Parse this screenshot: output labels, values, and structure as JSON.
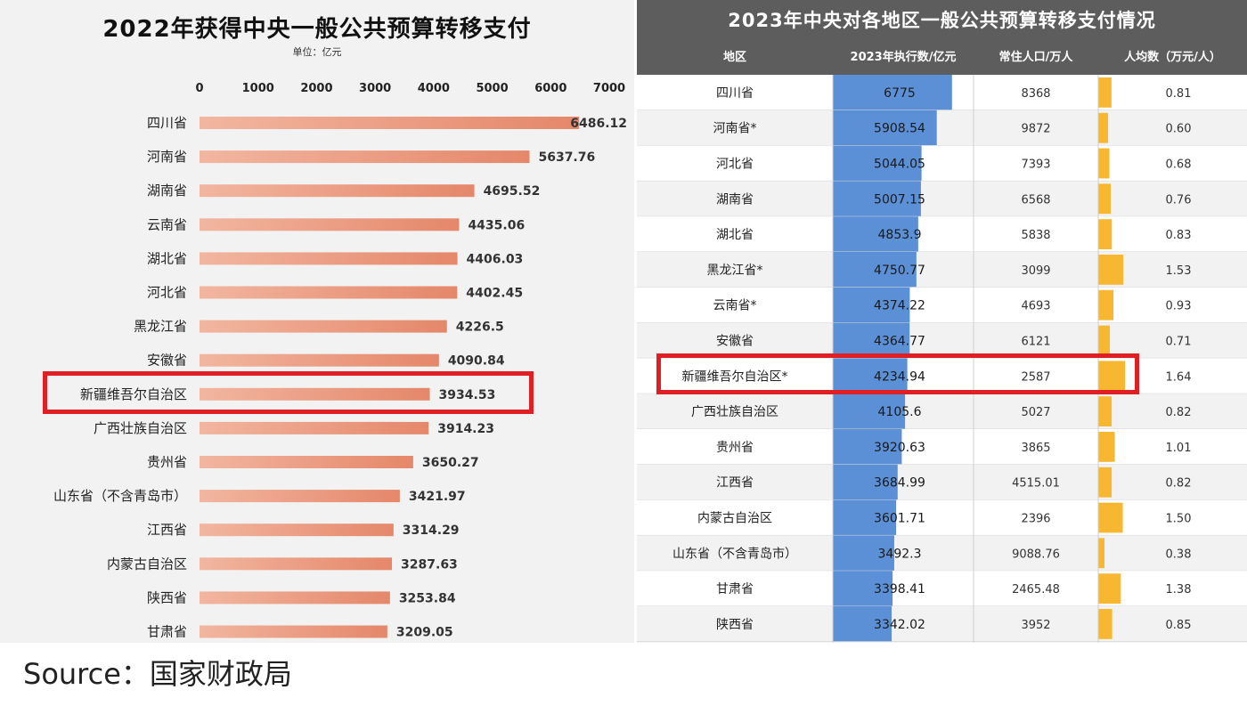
{
  "left": {
    "title": "2022年获得中央一般公共预算转移支付",
    "unit": "单位：亿元",
    "highlight_label": "新疆维吾尔自治区"
  },
  "right": {
    "title": "2023年中央对各地区一般公共预算转移支付情况",
    "columns": [
      "地区",
      "2023年执行数/亿元",
      "常住人口/万人",
      "人均数（万元/人）"
    ],
    "highlight_label": "新疆维吾尔自治区*"
  },
  "source": "Source：国家财政局",
  "colors": {
    "left_bar": "#e5876a",
    "left_bar_light": "#f2b6a0",
    "right_bar": "#5b8fd6",
    "right_percap_bar": "#f7b730",
    "header_bg": "#5d5d5d",
    "highlight": "#e01f25"
  },
  "chart_data": [
    {
      "type": "bar",
      "orientation": "horizontal",
      "title": "2022年获得中央一般公共预算转移支付",
      "subtitle": "单位：亿元",
      "xlim": [
        0,
        7000
      ],
      "xticks": [
        0,
        1000,
        2000,
        3000,
        4000,
        5000,
        6000,
        7000
      ],
      "categories": [
        "四川省",
        "河南省",
        "湖南省",
        "云南省",
        "湖北省",
        "河北省",
        "黑龙江省",
        "安徽省",
        "新疆维吾尔自治区",
        "广西壮族自治区",
        "贵州省",
        "山东省（不含青岛市）",
        "江西省",
        "内蒙古自治区",
        "陕西省",
        "甘肃省"
      ],
      "values": [
        6486.12,
        5637.76,
        4695.52,
        4435.06,
        4406.03,
        4402.45,
        4226.5,
        4090.84,
        3934.53,
        3914.23,
        3650.27,
        3421.97,
        3314.29,
        3287.63,
        3253.84,
        3209.05
      ],
      "value_labels": [
        "6486.12",
        "5637.76",
        "4695.52",
        "4435.06",
        "4406.03",
        "4402.45",
        "4226.5",
        "4090.84",
        "3934.53",
        "3914.23",
        "3650.27",
        "3421.97",
        "3314.29",
        "3287.63",
        "3253.84",
        "3209.05"
      ],
      "highlighted_category": "新疆维吾尔自治区"
    },
    {
      "type": "table",
      "title": "2023年中央对各地区一般公共预算转移支付情况",
      "columns": [
        "地区",
        "2023年执行数/亿元",
        "常住人口/万人",
        "人均数（万元/人）"
      ],
      "rows": [
        {
          "region": "四川省",
          "amount": "6775",
          "amount_value": 6775,
          "population": "8368",
          "per_capita": "0.81",
          "per_capita_value": 0.81
        },
        {
          "region": "河南省*",
          "amount": "5908.54",
          "amount_value": 5908.54,
          "population": "9872",
          "per_capita": "0.60",
          "per_capita_value": 0.6
        },
        {
          "region": "河北省",
          "amount": "5044.05",
          "amount_value": 5044.05,
          "population": "7393",
          "per_capita": "0.68",
          "per_capita_value": 0.68
        },
        {
          "region": "湖南省",
          "amount": "5007.15",
          "amount_value": 5007.15,
          "population": "6568",
          "per_capita": "0.76",
          "per_capita_value": 0.76
        },
        {
          "region": "湖北省",
          "amount": "4853.9",
          "amount_value": 4853.9,
          "population": "5838",
          "per_capita": "0.83",
          "per_capita_value": 0.83
        },
        {
          "region": "黑龙江省*",
          "amount": "4750.77",
          "amount_value": 4750.77,
          "population": "3099",
          "per_capita": "1.53",
          "per_capita_value": 1.53
        },
        {
          "region": "云南省*",
          "amount": "4374.22",
          "amount_value": 4374.22,
          "population": "4693",
          "per_capita": "0.93",
          "per_capita_value": 0.93
        },
        {
          "region": "安徽省",
          "amount": "4364.77",
          "amount_value": 4364.77,
          "population": "6121",
          "per_capita": "0.71",
          "per_capita_value": 0.71
        },
        {
          "region": "新疆维吾尔自治区*",
          "amount": "4234.94",
          "amount_value": 4234.94,
          "population": "2587",
          "per_capita": "1.64",
          "per_capita_value": 1.64
        },
        {
          "region": "广西壮族自治区",
          "amount": "4105.6",
          "amount_value": 4105.6,
          "population": "5027",
          "per_capita": "0.82",
          "per_capita_value": 0.82
        },
        {
          "region": "贵州省",
          "amount": "3920.63",
          "amount_value": 3920.63,
          "population": "3865",
          "per_capita": "1.01",
          "per_capita_value": 1.01
        },
        {
          "region": "江西省",
          "amount": "3684.99",
          "amount_value": 3684.99,
          "population": "4515.01",
          "per_capita": "0.82",
          "per_capita_value": 0.82
        },
        {
          "region": "内蒙古自治区",
          "amount": "3601.71",
          "amount_value": 3601.71,
          "population": "2396",
          "per_capita": "1.50",
          "per_capita_value": 1.5
        },
        {
          "region": "山东省（不含青岛市）",
          "amount": "3492.3",
          "amount_value": 3492.3,
          "population": "9088.76",
          "per_capita": "0.38",
          "per_capita_value": 0.38
        },
        {
          "region": "甘肃省",
          "amount": "3398.41",
          "amount_value": 3398.41,
          "population": "2465.48",
          "per_capita": "1.38",
          "per_capita_value": 1.38
        },
        {
          "region": "陕西省",
          "amount": "3342.02",
          "amount_value": 3342.02,
          "population": "3952",
          "per_capita": "0.85",
          "per_capita_value": 0.85
        }
      ],
      "amount_bar_max": 8000,
      "per_capita_bar_max": 6,
      "highlighted_region": "新疆维吾尔自治区*"
    }
  ]
}
